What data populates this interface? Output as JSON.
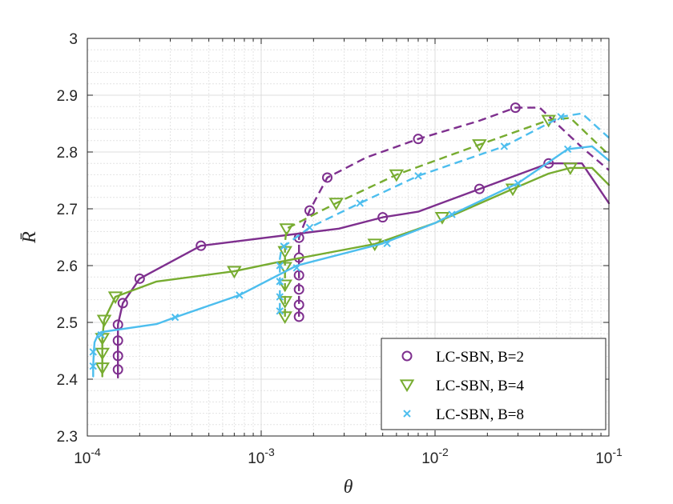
{
  "chart_data": {
    "type": "line",
    "title": "",
    "xlabel": "θ",
    "ylabel": "R̄",
    "xscale": "log",
    "xlim": [
      0.0001,
      0.1
    ],
    "ylim": [
      2.3,
      3.0
    ],
    "grid": true,
    "minor_grid": true,
    "x_tick_labels": [
      {
        "base": "10",
        "exp": "-4"
      },
      {
        "base": "10",
        "exp": "-3"
      },
      {
        "base": "10",
        "exp": "-2"
      },
      {
        "base": "10",
        "exp": "-1"
      }
    ],
    "y_tick_labels": [
      "2.3",
      "2.4",
      "2.5",
      "2.6",
      "2.7",
      "2.8",
      "2.9",
      "3"
    ],
    "legend_position": "bottom-right",
    "series": [
      {
        "name": "LC-SBN, B=2",
        "legend": "LC-SBN, B=2",
        "marker": "circle",
        "color": "#7E2F8E",
        "style": "solid",
        "x": [
          0.00015,
          0.00015,
          0.00015,
          0.00015,
          0.00015,
          0.00016,
          0.0002,
          0.00045,
          0.0028,
          0.005,
          0.008,
          0.018,
          0.03,
          0.045,
          0.07,
          0.1
        ],
        "y": [
          2.403,
          2.417,
          2.441,
          2.468,
          2.496,
          2.534,
          2.577,
          2.635,
          2.665,
          2.685,
          2.695,
          2.735,
          2.76,
          2.78,
          2.78,
          2.71
        ],
        "marker_x": [
          0.00015,
          0.00015,
          0.00015,
          0.00015,
          0.00016,
          0.0002,
          0.00045,
          0.005,
          0.018,
          0.045
        ],
        "marker_y": [
          2.417,
          2.441,
          2.468,
          2.496,
          2.534,
          2.577,
          2.635,
          2.685,
          2.735,
          2.78
        ]
      },
      {
        "name": "LC-SBN, B=2 (dashed)",
        "legend": "",
        "marker": "circle",
        "color": "#7E2F8E",
        "style": "dashed",
        "x": [
          0.00165,
          0.00165,
          0.00165,
          0.00165,
          0.00165,
          0.00165,
          0.00165,
          0.00175,
          0.0019,
          0.0024,
          0.004,
          0.008,
          0.018,
          0.029,
          0.04,
          0.07,
          0.1
        ],
        "y": [
          2.51,
          2.531,
          2.558,
          2.583,
          2.614,
          2.63,
          2.649,
          2.67,
          2.697,
          2.755,
          2.79,
          2.823,
          2.855,
          2.878,
          2.878,
          2.808,
          2.768
        ],
        "marker_x": [
          0.00165,
          0.00165,
          0.00165,
          0.00165,
          0.00165,
          0.00165,
          0.0019,
          0.0024,
          0.008,
          0.029
        ],
        "marker_y": [
          2.51,
          2.531,
          2.558,
          2.583,
          2.614,
          2.649,
          2.697,
          2.755,
          2.823,
          2.878
        ]
      },
      {
        "name": "LC-SBN, B=4",
        "legend": "LC-SBN, B=4",
        "marker": "triangle-down",
        "color": "#77AC30",
        "style": "solid",
        "x": [
          0.000122,
          0.000122,
          0.000122,
          0.000122,
          0.000125,
          0.000145,
          0.00025,
          0.0007,
          0.0012,
          0.0045,
          0.01,
          0.028,
          0.045,
          0.06,
          0.08,
          0.1
        ],
        "y": [
          2.405,
          2.42,
          2.446,
          2.472,
          2.504,
          2.545,
          2.572,
          2.59,
          2.605,
          2.638,
          2.675,
          2.735,
          2.762,
          2.772,
          2.772,
          2.742
        ],
        "marker_x": [
          0.000122,
          0.000122,
          0.000122,
          0.000125,
          0.000145,
          0.0007,
          0.0045,
          0.011,
          0.028,
          0.06
        ],
        "marker_y": [
          2.42,
          2.446,
          2.472,
          2.504,
          2.545,
          2.59,
          2.638,
          2.685,
          2.735,
          2.772
        ]
      },
      {
        "name": "LC-SBN, B=4 (dashed)",
        "legend": "",
        "marker": "triangle-down",
        "color": "#77AC30",
        "style": "dashed",
        "x": [
          0.00137,
          0.00137,
          0.00137,
          0.00137,
          0.00137,
          0.00137,
          0.0014,
          0.0027,
          0.006,
          0.018,
          0.045,
          0.06,
          0.1
        ],
        "y": [
          2.51,
          2.537,
          2.566,
          2.597,
          2.625,
          2.64,
          2.665,
          2.71,
          2.76,
          2.813,
          2.856,
          2.86,
          2.795
        ],
        "marker_x": [
          0.00137,
          0.00137,
          0.00137,
          0.00137,
          0.00137,
          0.0014,
          0.0027,
          0.006,
          0.018,
          0.045
        ],
        "marker_y": [
          2.51,
          2.537,
          2.566,
          2.597,
          2.625,
          2.665,
          2.71,
          2.76,
          2.813,
          2.856
        ]
      },
      {
        "name": "LC-SBN, B=8",
        "legend": "LC-SBN, B=8",
        "marker": "x",
        "color": "#4DBEEE",
        "style": "solid",
        "x": [
          0.000108,
          0.000108,
          0.000109,
          0.00011,
          0.000115,
          0.00012,
          0.00025,
          0.00032,
          0.00075,
          0.0016,
          0.005,
          0.01,
          0.0125,
          0.03,
          0.058,
          0.08,
          0.1
        ],
        "y": [
          2.405,
          2.423,
          2.448,
          2.465,
          2.478,
          2.483,
          2.497,
          2.509,
          2.548,
          2.6,
          2.639,
          2.675,
          2.69,
          2.745,
          2.805,
          2.81,
          2.785
        ],
        "marker_x": [
          0.000108,
          0.000108,
          0.00012,
          0.00032,
          0.00075,
          0.0016,
          0.0053,
          0.0125,
          0.03,
          0.058
        ],
        "marker_y": [
          2.423,
          2.448,
          2.478,
          2.509,
          2.548,
          2.596,
          2.639,
          2.69,
          2.745,
          2.805
        ]
      },
      {
        "name": "LC-SBN, B=8 (dashed)",
        "legend": "",
        "marker": "x",
        "color": "#4DBEEE",
        "style": "dashed",
        "x": [
          0.00128,
          0.00128,
          0.00128,
          0.00128,
          0.00128,
          0.0013,
          0.00135,
          0.0019,
          0.0037,
          0.008,
          0.025,
          0.053,
          0.07,
          0.1
        ],
        "y": [
          2.52,
          2.545,
          2.572,
          2.6,
          2.612,
          2.625,
          2.634,
          2.667,
          2.71,
          2.758,
          2.81,
          2.862,
          2.868,
          2.825
        ],
        "marker_x": [
          0.00128,
          0.00128,
          0.00128,
          0.00128,
          0.00135,
          0.0019,
          0.0037,
          0.008,
          0.025,
          0.053
        ],
        "marker_y": [
          2.52,
          2.545,
          2.572,
          2.6,
          2.634,
          2.667,
          2.71,
          2.758,
          2.81,
          2.862
        ]
      }
    ]
  }
}
